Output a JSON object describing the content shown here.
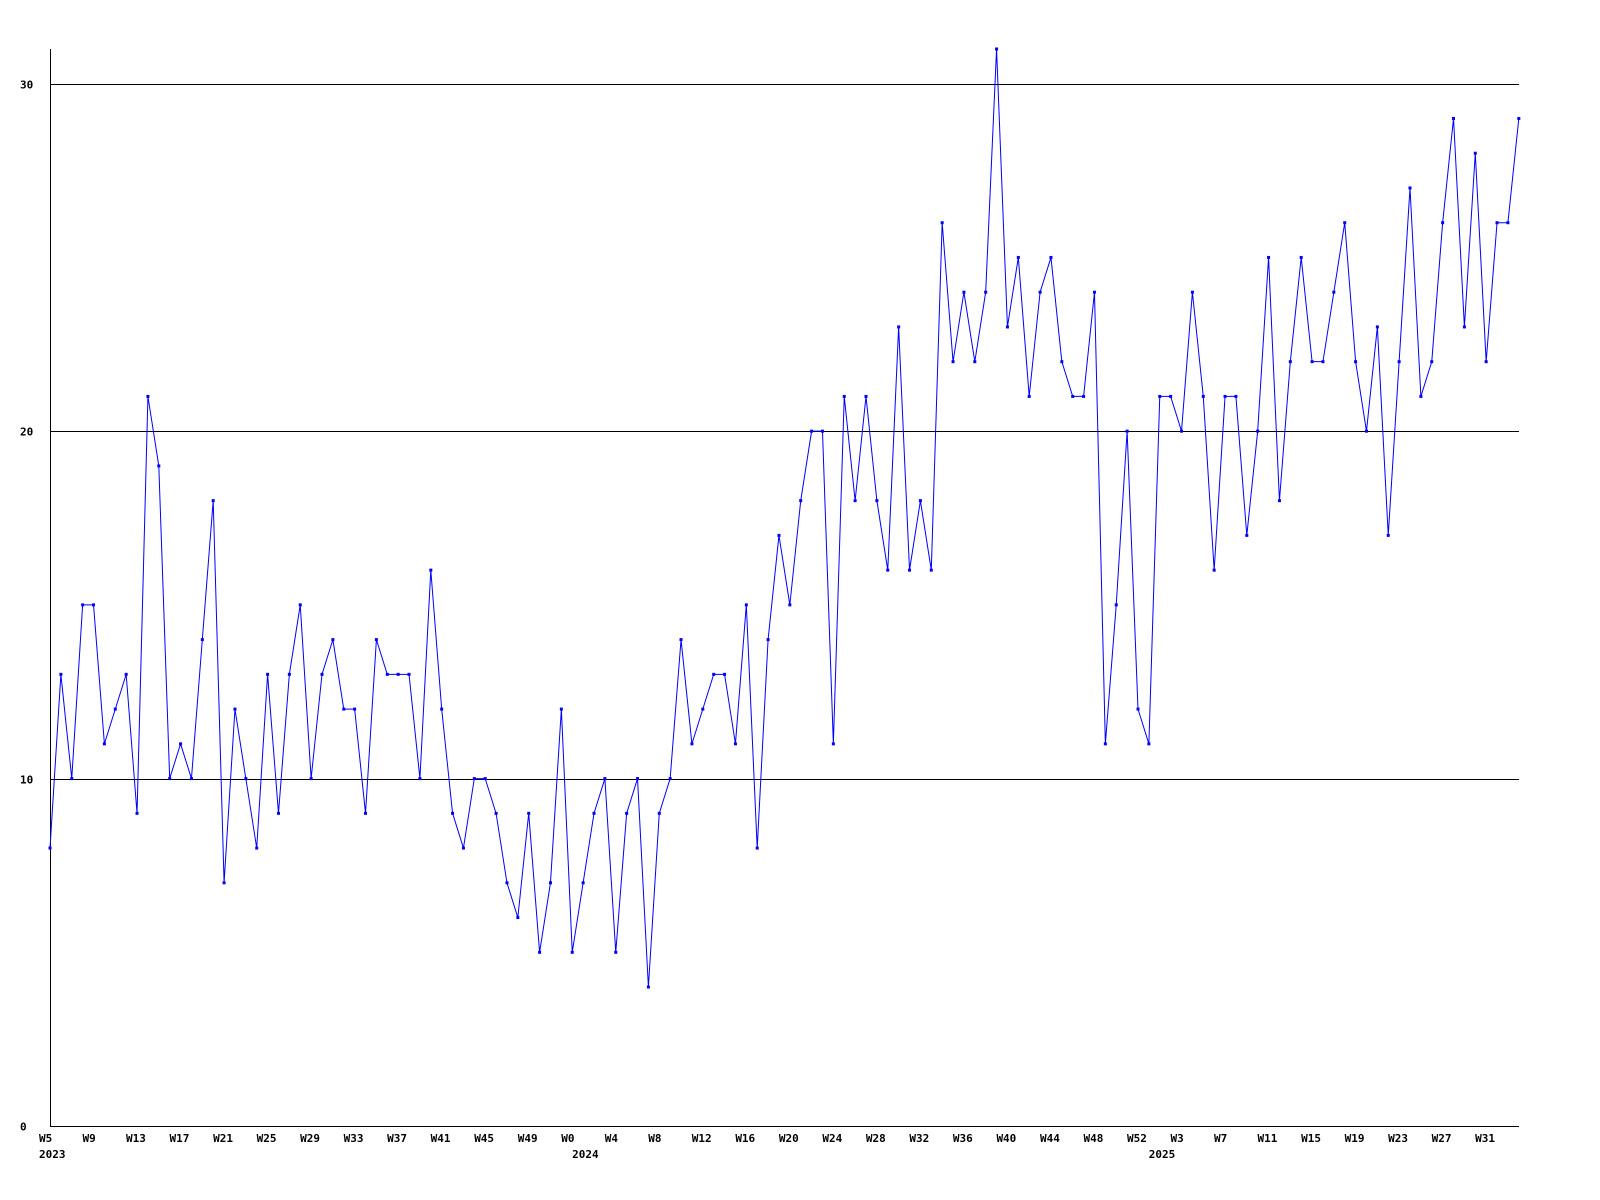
{
  "chart_data": {
    "type": "line",
    "title": "",
    "xlabel": "",
    "ylabel": "",
    "ylim": [
      0,
      31
    ],
    "y_ticks": [
      0,
      10,
      20,
      30
    ],
    "grid": "horizontal lines at y ticks",
    "legend": "none",
    "colors": {
      "line": "#0000ff",
      "grid": "#000000",
      "axis": "#000000",
      "text": "#000000",
      "background": "#ffffff"
    },
    "x_tick_labels": [
      {
        "index": 0,
        "label": "W5"
      },
      {
        "index": 4,
        "label": "W9"
      },
      {
        "index": 8,
        "label": "W13"
      },
      {
        "index": 12,
        "label": "W17"
      },
      {
        "index": 16,
        "label": "W21"
      },
      {
        "index": 20,
        "label": "W25"
      },
      {
        "index": 24,
        "label": "W29"
      },
      {
        "index": 28,
        "label": "W33"
      },
      {
        "index": 32,
        "label": "W37"
      },
      {
        "index": 36,
        "label": "W41"
      },
      {
        "index": 40,
        "label": "W45"
      },
      {
        "index": 44,
        "label": "W49"
      },
      {
        "index": 48,
        "label": "W0"
      },
      {
        "index": 52,
        "label": "W4"
      },
      {
        "index": 56,
        "label": "W8"
      },
      {
        "index": 60,
        "label": "W12"
      },
      {
        "index": 64,
        "label": "W16"
      },
      {
        "index": 68,
        "label": "W20"
      },
      {
        "index": 72,
        "label": "W24"
      },
      {
        "index": 76,
        "label": "W28"
      },
      {
        "index": 80,
        "label": "W32"
      },
      {
        "index": 84,
        "label": "W36"
      },
      {
        "index": 88,
        "label": "W40"
      },
      {
        "index": 92,
        "label": "W44"
      },
      {
        "index": 96,
        "label": "W48"
      },
      {
        "index": 100,
        "label": "W52"
      },
      {
        "index": 104,
        "label": "W3"
      },
      {
        "index": 108,
        "label": "W7"
      },
      {
        "index": 112,
        "label": "W11"
      },
      {
        "index": 116,
        "label": "W15"
      },
      {
        "index": 120,
        "label": "W19"
      },
      {
        "index": 124,
        "label": "W23"
      },
      {
        "index": 128,
        "label": "W27"
      },
      {
        "index": 132,
        "label": "W31"
      }
    ],
    "year_labels": [
      {
        "index": 0,
        "label": "2023"
      },
      {
        "index": 49,
        "label": "2024"
      },
      {
        "index": 102,
        "label": "2025"
      }
    ],
    "series": [
      {
        "values": [
          8,
          13,
          10,
          15,
          15,
          11,
          12,
          13,
          9,
          21,
          19,
          10,
          11,
          10,
          14,
          18,
          7,
          12,
          10,
          8,
          13,
          9,
          13,
          15,
          10,
          13,
          14,
          12,
          12,
          9,
          14,
          13,
          13,
          13,
          10,
          16,
          12,
          9,
          8,
          10,
          10,
          9,
          7,
          6,
          9,
          5,
          7,
          12,
          5,
          7,
          9,
          10,
          5,
          9,
          10,
          4,
          9,
          10,
          14,
          11,
          12,
          13,
          13,
          11,
          15,
          8,
          14,
          17,
          15,
          18,
          20,
          20,
          11,
          21,
          18,
          21,
          18,
          16,
          23,
          16,
          18,
          16,
          26,
          22,
          24,
          22,
          24,
          31,
          23,
          25,
          21,
          24,
          25,
          22,
          21,
          21,
          24,
          11,
          15,
          20,
          12,
          11,
          21,
          21,
          20,
          24,
          21,
          16,
          21,
          21,
          17,
          20,
          25,
          18,
          22,
          25,
          22,
          22,
          24,
          26,
          22,
          20,
          23,
          17,
          22,
          27,
          21,
          22,
          26,
          29,
          23,
          28,
          22,
          26,
          26,
          29
        ]
      }
    ]
  }
}
